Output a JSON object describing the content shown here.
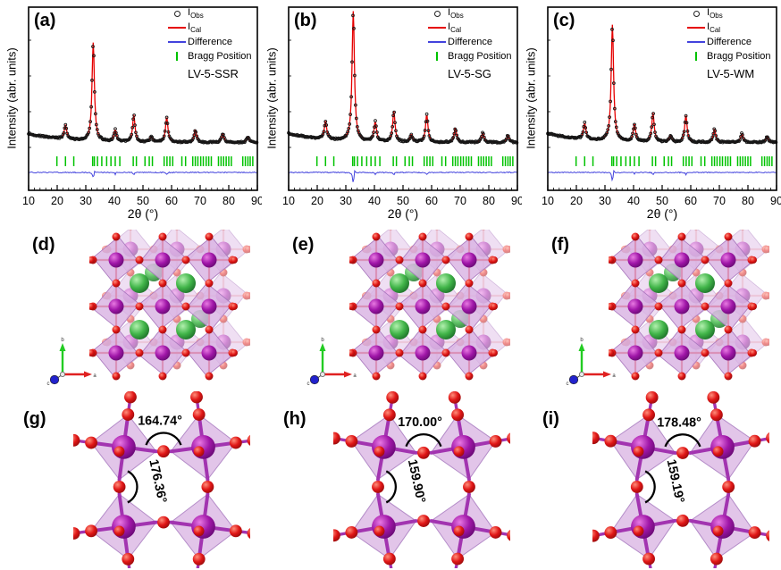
{
  "figure": {
    "background": "#ffffff",
    "panel_labels": [
      "(a)",
      "(b)",
      "(c)",
      "(d)",
      "(e)",
      "(f)",
      "(g)",
      "(h)",
      "(i)"
    ]
  },
  "colors": {
    "calculated_line": "#e60000",
    "difference_line": "#4343dd",
    "bragg_tick": "#00c300",
    "observed_marker": "#161616",
    "octahedra_fill": "#d8b2e2",
    "vanadium_atom": "#a016a8",
    "oxygen_atom": "#e01616",
    "lanthanum_atom": "#41b549",
    "axis_a": "#e02020",
    "axis_b": "#22cc22",
    "axis_c": "#2222cc"
  },
  "legend": {
    "position": "top-right",
    "entries": [
      {
        "marker": "obs",
        "main": "I",
        "sub": "Obs"
      },
      {
        "marker": "cal",
        "main": "I",
        "sub": "Cal"
      },
      {
        "marker": "diff",
        "main": "Difference",
        "sub": ""
      },
      {
        "marker": "bragg",
        "main": "Bragg Position",
        "sub": ""
      }
    ]
  },
  "chart_data": [
    {
      "type": "line",
      "sample": "LV-5-SSR",
      "xlabel": "2θ (°)",
      "ylabel": "Intensity (abr. units)",
      "xlim": [
        10,
        90
      ],
      "xticks": [
        10,
        20,
        30,
        40,
        50,
        60,
        70,
        80,
        90
      ],
      "peaks_2theta": [
        22.9,
        32.6,
        40.3,
        46.8,
        52.9,
        58.3,
        68.3,
        77.9,
        86.7
      ],
      "peak_heights": [
        16,
        110,
        13,
        30,
        6,
        28,
        14,
        10,
        6
      ],
      "diff_spike": 6,
      "bragg_positions": [
        19.9,
        22.9,
        25.8,
        32.4,
        33.0,
        34.1,
        35.6,
        37.3,
        38.8,
        40.3,
        41.9,
        46.6,
        47.7,
        50.7,
        52.2,
        53.3,
        57.4,
        58.4,
        59.4,
        60.4,
        63.6,
        64.9,
        67.4,
        68.3,
        69.2,
        70.2,
        71.1,
        72.1,
        73.0,
        73.9,
        76.4,
        77.3,
        78.2,
        79.1,
        80.0,
        80.9,
        84.9,
        85.8,
        86.7,
        87.5,
        88.4
      ]
    },
    {
      "type": "line",
      "sample": "LV-5-SG",
      "xlabel": "2θ (°)",
      "ylabel": "Intensity (abr. units)",
      "xlim": [
        10,
        90
      ],
      "xticks": [
        10,
        20,
        30,
        40,
        50,
        60,
        70,
        80,
        90
      ],
      "peaks_2theta": [
        22.9,
        32.6,
        40.3,
        46.8,
        52.9,
        58.3,
        68.3,
        77.9,
        86.7
      ],
      "peak_heights": [
        20,
        145,
        22,
        34,
        8,
        31,
        16,
        11,
        8
      ],
      "diff_spike": 13,
      "bragg_positions": [
        19.9,
        22.9,
        25.8,
        32.4,
        33.0,
        34.1,
        35.6,
        37.3,
        38.8,
        40.3,
        41.9,
        46.6,
        47.7,
        50.7,
        52.2,
        53.3,
        57.4,
        58.4,
        59.4,
        60.4,
        63.6,
        64.9,
        67.4,
        68.3,
        69.2,
        70.2,
        71.1,
        72.1,
        73.0,
        73.9,
        76.4,
        77.3,
        78.2,
        79.1,
        80.0,
        80.9,
        84.9,
        85.8,
        86.7,
        87.5,
        88.4
      ]
    },
    {
      "type": "line",
      "sample": "LV-5-WM",
      "xlabel": "2θ (°)",
      "ylabel": "Intensity (abr. units)",
      "xlim": [
        10,
        90
      ],
      "xticks": [
        10,
        20,
        30,
        40,
        50,
        60,
        70,
        80,
        90
      ],
      "peaks_2theta": [
        22.9,
        32.6,
        40.3,
        46.8,
        52.9,
        58.3,
        68.3,
        77.9,
        86.7
      ],
      "peak_heights": [
        18,
        130,
        19,
        32,
        7,
        30,
        15,
        10,
        7
      ],
      "diff_spike": 10,
      "bragg_positions": [
        19.9,
        22.9,
        25.8,
        32.4,
        33.0,
        34.1,
        35.6,
        37.3,
        38.8,
        40.3,
        41.9,
        46.6,
        47.7,
        50.7,
        52.2,
        53.3,
        57.4,
        58.4,
        59.4,
        60.4,
        63.6,
        64.9,
        67.4,
        68.3,
        69.2,
        70.2,
        71.1,
        72.1,
        73.0,
        73.9,
        76.4,
        77.3,
        78.2,
        79.1,
        80.0,
        80.9,
        84.9,
        85.8,
        86.7,
        87.5,
        88.4
      ]
    }
  ],
  "structures": {
    "axes_labels": [
      "a",
      "b",
      "c"
    ]
  },
  "octahedra_tilt_panels": [
    {
      "angle_top": "164.74°",
      "angle_side": "176.36°"
    },
    {
      "angle_top": "170.00°",
      "angle_side": "159.90°"
    },
    {
      "angle_top": "178.48°",
      "angle_side": "159.19°"
    }
  ]
}
